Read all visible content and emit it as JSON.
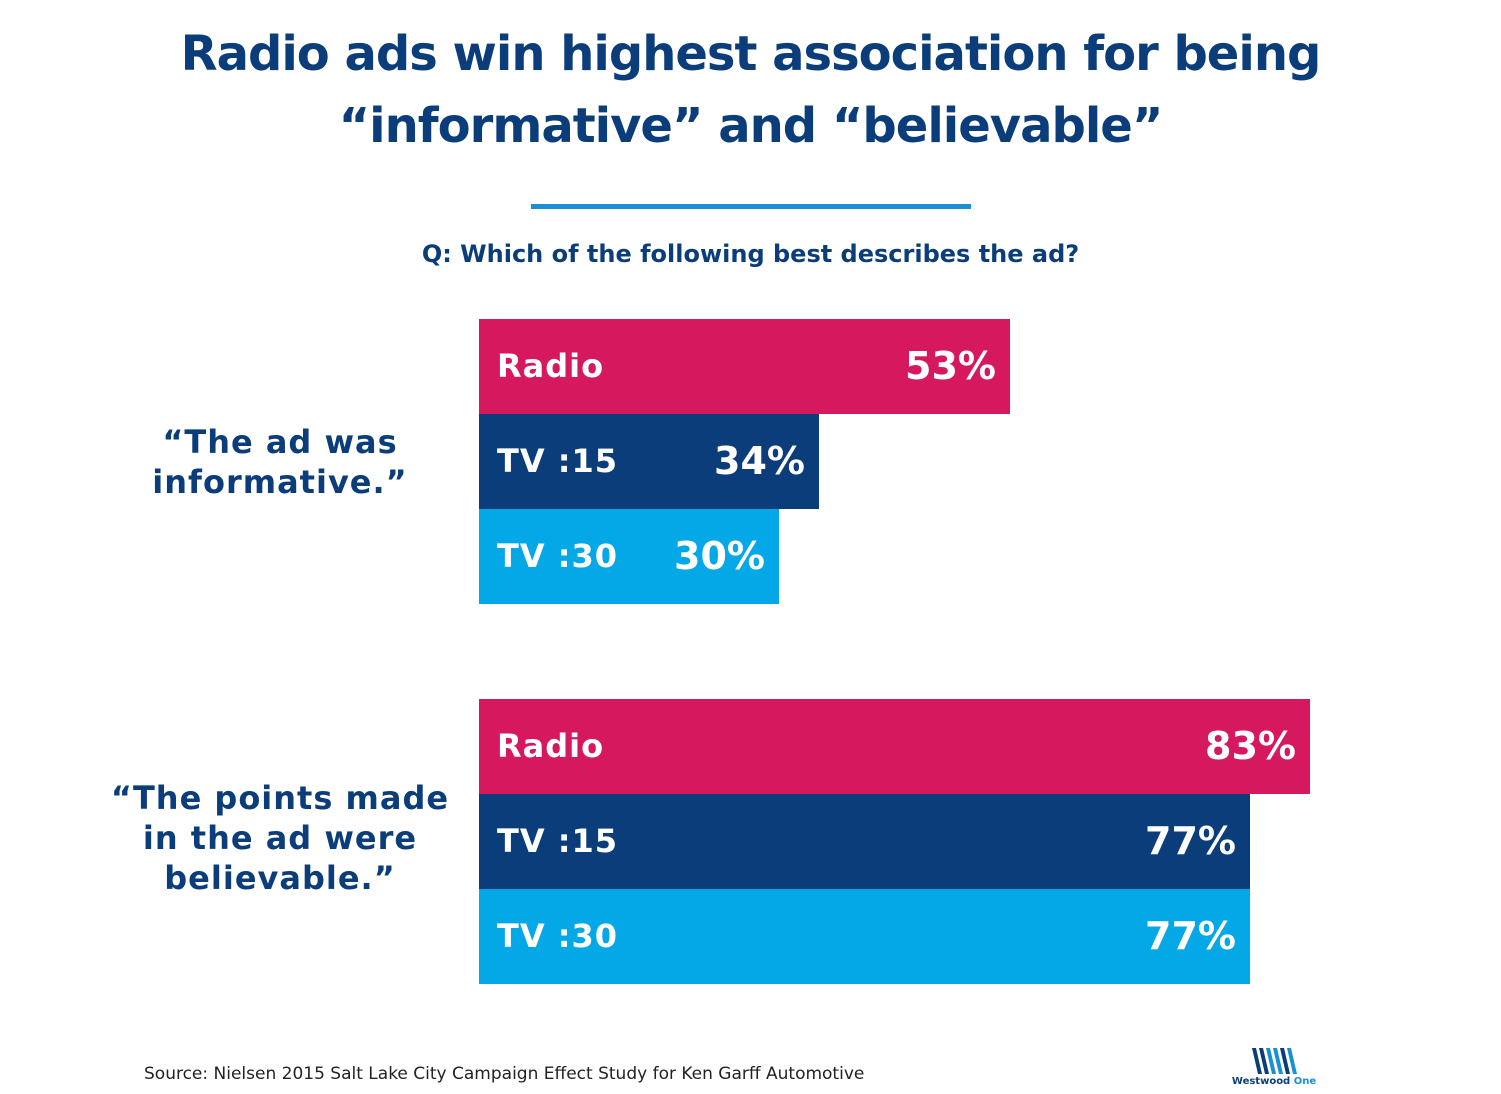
{
  "title": {
    "line1": "Radio ads win highest association for being",
    "line2": "“informative” and “believable”"
  },
  "question": "Q: Which of the following best describes the ad?",
  "colors": {
    "Radio": "#d6195f",
    "TV :15": "#0b3d7a",
    "TV :30": "#05a8e6",
    "title": "#0b3d7a",
    "rule": "#1a8fd4"
  },
  "chart_data": [
    {
      "type": "bar",
      "orientation": "horizontal",
      "label_lines": [
        "“The ad was",
        "informative.”"
      ],
      "categories": [
        "Radio",
        "TV :15",
        "TV :30"
      ],
      "values": [
        53,
        34,
        30
      ],
      "value_labels": [
        "53%",
        "34%",
        "30%"
      ]
    },
    {
      "type": "bar",
      "orientation": "horizontal",
      "label_lines": [
        "“The points made",
        "in the ad were",
        "believable.”"
      ],
      "categories": [
        "Radio",
        "TV :15",
        "TV :30"
      ],
      "values": [
        83,
        77,
        77
      ],
      "value_labels": [
        "83%",
        "77%",
        "77%"
      ]
    }
  ],
  "source": "Source: Nielsen 2015 Salt Lake City Campaign Effect Study for Ken Garff Automotive",
  "logo": {
    "name": "westwood-one-logo",
    "word1": "Westwood",
    "word2": "One"
  }
}
